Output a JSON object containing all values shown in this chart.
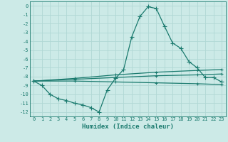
{
  "xlabel": "Humidex (Indice chaleur)",
  "bg_color": "#cceae7",
  "grid_color": "#b0d8d4",
  "line_color": "#1a7a6e",
  "xlim": [
    -0.5,
    23.5
  ],
  "ylim": [
    -12.5,
    0.5
  ],
  "xtick_labels": [
    "0",
    "1",
    "2",
    "3",
    "4",
    "5",
    "6",
    "7",
    "8",
    "9",
    "10",
    "11",
    "12",
    "13",
    "14",
    "15",
    "16",
    "17",
    "18",
    "19",
    "20",
    "21",
    "22",
    "23"
  ],
  "ytick_labels": [
    "0",
    "-1",
    "-2",
    "-3",
    "-4",
    "-5",
    "-6",
    "-7",
    "-8",
    "-9",
    "-10",
    "-11",
    "-12"
  ],
  "main_x": [
    0,
    1,
    2,
    3,
    4,
    5,
    6,
    7,
    8,
    9,
    10,
    11,
    12,
    13,
    14,
    15,
    16,
    17,
    18,
    19,
    20,
    21,
    22,
    23
  ],
  "main_y": [
    -8.5,
    -9.0,
    -10.0,
    -10.5,
    -10.7,
    -11.0,
    -11.2,
    -11.5,
    -12.0,
    -9.5,
    -8.2,
    -7.2,
    -3.5,
    -1.2,
    -0.1,
    -0.3,
    -2.3,
    -4.2,
    -4.8,
    -6.3,
    -7.0,
    -8.1,
    -8.1,
    -8.6
  ],
  "upper_x": [
    0,
    5,
    10,
    15,
    20,
    23
  ],
  "upper_y": [
    -8.5,
    -8.2,
    -7.8,
    -7.5,
    -7.3,
    -7.2
  ],
  "mid_x": [
    0,
    5,
    10,
    15,
    20,
    23
  ],
  "mid_y": [
    -8.5,
    -8.3,
    -8.1,
    -7.9,
    -7.8,
    -7.7
  ],
  "lower_x": [
    0,
    5,
    10,
    15,
    20,
    23
  ],
  "lower_y": [
    -8.5,
    -8.5,
    -8.6,
    -8.7,
    -8.8,
    -8.9
  ]
}
